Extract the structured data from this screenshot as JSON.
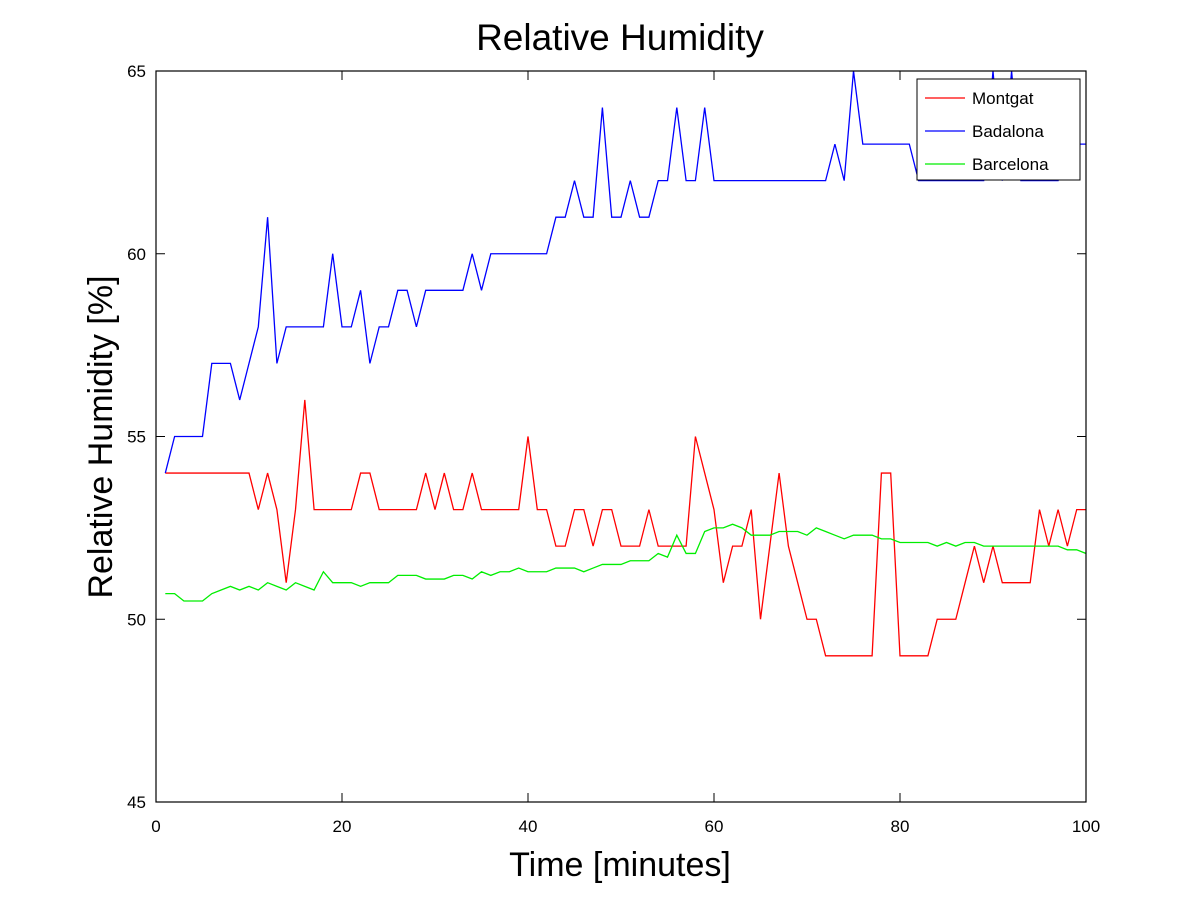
{
  "chart_data": {
    "type": "line",
    "title": "Relative Humidity",
    "xlabel": "Time [minutes]",
    "ylabel": "Relative Humidity [%]",
    "xlim": [
      0,
      100
    ],
    "ylim": [
      45,
      65
    ],
    "xticks": [
      0,
      20,
      40,
      60,
      80,
      100
    ],
    "yticks": [
      45,
      50,
      55,
      60,
      65
    ],
    "grid": false,
    "legend_position": "top-right",
    "x": [
      1,
      2,
      3,
      4,
      5,
      6,
      7,
      8,
      9,
      10,
      11,
      12,
      13,
      14,
      15,
      16,
      17,
      18,
      19,
      20,
      21,
      22,
      23,
      24,
      25,
      26,
      27,
      28,
      29,
      30,
      31,
      32,
      33,
      34,
      35,
      36,
      37,
      38,
      39,
      40,
      41,
      42,
      43,
      44,
      45,
      46,
      47,
      48,
      49,
      50,
      51,
      52,
      53,
      54,
      55,
      56,
      57,
      58,
      59,
      60,
      61,
      62,
      63,
      64,
      65,
      66,
      67,
      68,
      69,
      70,
      71,
      72,
      73,
      74,
      75,
      76,
      77,
      78,
      79,
      80,
      81,
      82,
      83,
      84,
      85,
      86,
      87,
      88,
      89,
      90,
      91,
      92,
      93,
      94,
      95,
      96,
      97,
      98,
      99,
      100
    ],
    "series": [
      {
        "name": "Montgat",
        "color": "#ff0000",
        "values": [
          54,
          54,
          54,
          54,
          54,
          54,
          54,
          54,
          54,
          54,
          53,
          54,
          53,
          51,
          53,
          56,
          53,
          53,
          53,
          53,
          53,
          54,
          54,
          53,
          53,
          53,
          53,
          53,
          54,
          53,
          54,
          53,
          53,
          54,
          53,
          53,
          53,
          53,
          53,
          55,
          53,
          53,
          52,
          52,
          53,
          53,
          52,
          53,
          53,
          52,
          52,
          52,
          53,
          52,
          52,
          52,
          52,
          55,
          54,
          53,
          51,
          52,
          52,
          53,
          50,
          52,
          54,
          52,
          51,
          50,
          50,
          49,
          49,
          49,
          49,
          49,
          49,
          54,
          54,
          49,
          49,
          49,
          49,
          50,
          50,
          50,
          51,
          52,
          51,
          52,
          51,
          51,
          51,
          51,
          53,
          52,
          53,
          52,
          53,
          53
        ]
      },
      {
        "name": "Badalona",
        "color": "#0000ff",
        "values": [
          54,
          55,
          55,
          55,
          55,
          57,
          57,
          57,
          56,
          57,
          58,
          61,
          57,
          58,
          58,
          58,
          58,
          58,
          60,
          58,
          58,
          59,
          57,
          58,
          58,
          59,
          59,
          58,
          59,
          59,
          59,
          59,
          59,
          60,
          59,
          60,
          60,
          60,
          60,
          60,
          60,
          60,
          61,
          61,
          62,
          61,
          61,
          64,
          61,
          61,
          62,
          61,
          61,
          62,
          62,
          64,
          62,
          62,
          64,
          62,
          62,
          62,
          62,
          62,
          62,
          62,
          62,
          62,
          62,
          62,
          62,
          62,
          63,
          62,
          65,
          63,
          63,
          63,
          63,
          63,
          63,
          62,
          62,
          62,
          62,
          62,
          62,
          62,
          62,
          65,
          62,
          65,
          62,
          62,
          62,
          62,
          62,
          63,
          63,
          63
        ]
      },
      {
        "name": "Barcelona",
        "color": "#00ee00",
        "values": [
          50.7,
          50.7,
          50.5,
          50.5,
          50.5,
          50.7,
          50.8,
          50.9,
          50.8,
          50.9,
          50.8,
          51.0,
          50.9,
          50.8,
          51.0,
          50.9,
          50.8,
          51.3,
          51.0,
          51.0,
          51.0,
          50.9,
          51.0,
          51.0,
          51.0,
          51.2,
          51.2,
          51.2,
          51.1,
          51.1,
          51.1,
          51.2,
          51.2,
          51.1,
          51.3,
          51.2,
          51.3,
          51.3,
          51.4,
          51.3,
          51.3,
          51.3,
          51.4,
          51.4,
          51.4,
          51.3,
          51.4,
          51.5,
          51.5,
          51.5,
          51.6,
          51.6,
          51.6,
          51.8,
          51.7,
          52.3,
          51.8,
          51.8,
          52.4,
          52.5,
          52.5,
          52.6,
          52.5,
          52.3,
          52.3,
          52.3,
          52.4,
          52.4,
          52.4,
          52.3,
          52.5,
          52.4,
          52.3,
          52.2,
          52.3,
          52.3,
          52.3,
          52.2,
          52.2,
          52.1,
          52.1,
          52.1,
          52.1,
          52.0,
          52.1,
          52.0,
          52.1,
          52.1,
          52.0,
          52.0,
          52.0,
          52.0,
          52.0,
          52.0,
          52.0,
          52.0,
          52.0,
          51.9,
          51.9,
          51.8
        ]
      }
    ]
  }
}
